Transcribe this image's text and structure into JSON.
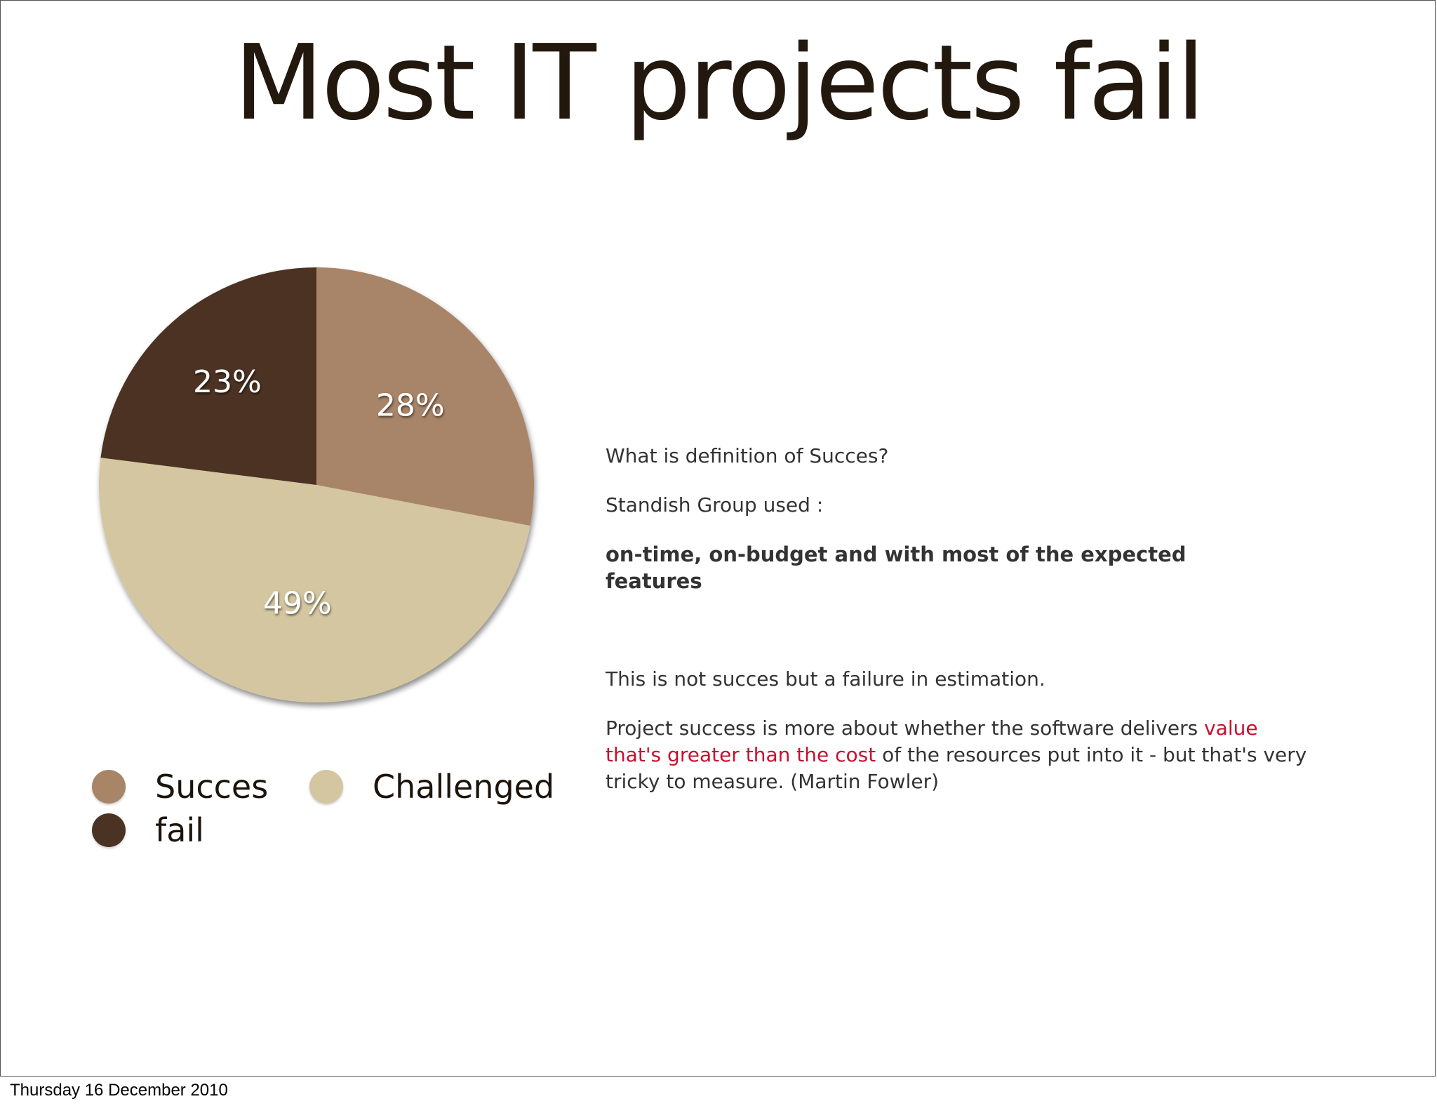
{
  "slide": {
    "title": "Most IT projects fail",
    "footer_date": "Thursday 16 December 2010"
  },
  "chart_data": {
    "type": "pie",
    "start_angle_deg": 0,
    "direction": "clockwise",
    "slices": [
      {
        "name": "Succes",
        "value": 28,
        "label": "28%",
        "color": "#a88567"
      },
      {
        "name": "Challenged",
        "value": 49,
        "label": "49%",
        "color": "#d4c6a0"
      },
      {
        "name": "fail",
        "value": 23,
        "label": "23%",
        "color": "#4b3324"
      }
    ],
    "legend": {
      "placement": "bottom-left",
      "items": [
        {
          "label": "Succes",
          "color": "#a88567"
        },
        {
          "label": "Challenged",
          "color": "#d4c6a0"
        },
        {
          "label": "fail",
          "color": "#4b3324"
        }
      ]
    }
  },
  "text": {
    "question": "What is definition of Succes?",
    "standish": "Standish Group used :",
    "criteria": "on-time, on-budget and with most of the expected features",
    "not_succes": "This is not succes but a failure in estimation.",
    "fowler": {
      "part1": "Project success is more about whether the software delivers ",
      "highlight": "value that's greater than the cost",
      "part2": " of the resources put into it - but that's very tricky to measure. (Martin Fowler)",
      "highlight_color": "#c8102e"
    }
  }
}
